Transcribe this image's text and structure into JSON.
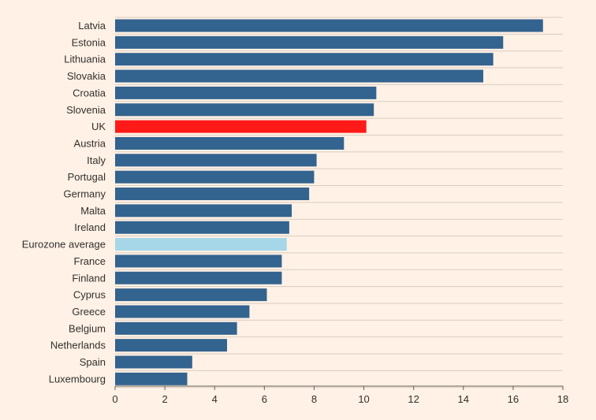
{
  "chart_data": {
    "type": "bar",
    "orientation": "horizontal",
    "categories": [
      "Latvia",
      "Estonia",
      "Lithuania",
      "Slovakia",
      "Croatia",
      "Slovenia",
      "UK",
      "Austria",
      "Italy",
      "Portugal",
      "Germany",
      "Malta",
      "Ireland",
      "Eurozone average",
      "France",
      "Finland",
      "Cyprus",
      "Greece",
      "Belgium",
      "Netherlands",
      "Spain",
      "Luxembourg"
    ],
    "values": [
      17.2,
      15.6,
      15.2,
      14.8,
      10.5,
      10.4,
      10.1,
      9.2,
      8.1,
      8.0,
      7.8,
      7.1,
      7.0,
      6.9,
      6.7,
      6.7,
      6.1,
      5.4,
      4.9,
      4.5,
      3.1,
      2.9
    ],
    "highlight": {
      "UK": "#ff1a1a",
      "Eurozone average": "#a5d7e8"
    },
    "bar_color": "#33638f",
    "xlim": [
      0,
      18
    ],
    "xticks": [
      0,
      2,
      4,
      6,
      8,
      10,
      12,
      14,
      16,
      18
    ],
    "grid": true,
    "title": "",
    "xlabel": "",
    "ylabel": ""
  }
}
